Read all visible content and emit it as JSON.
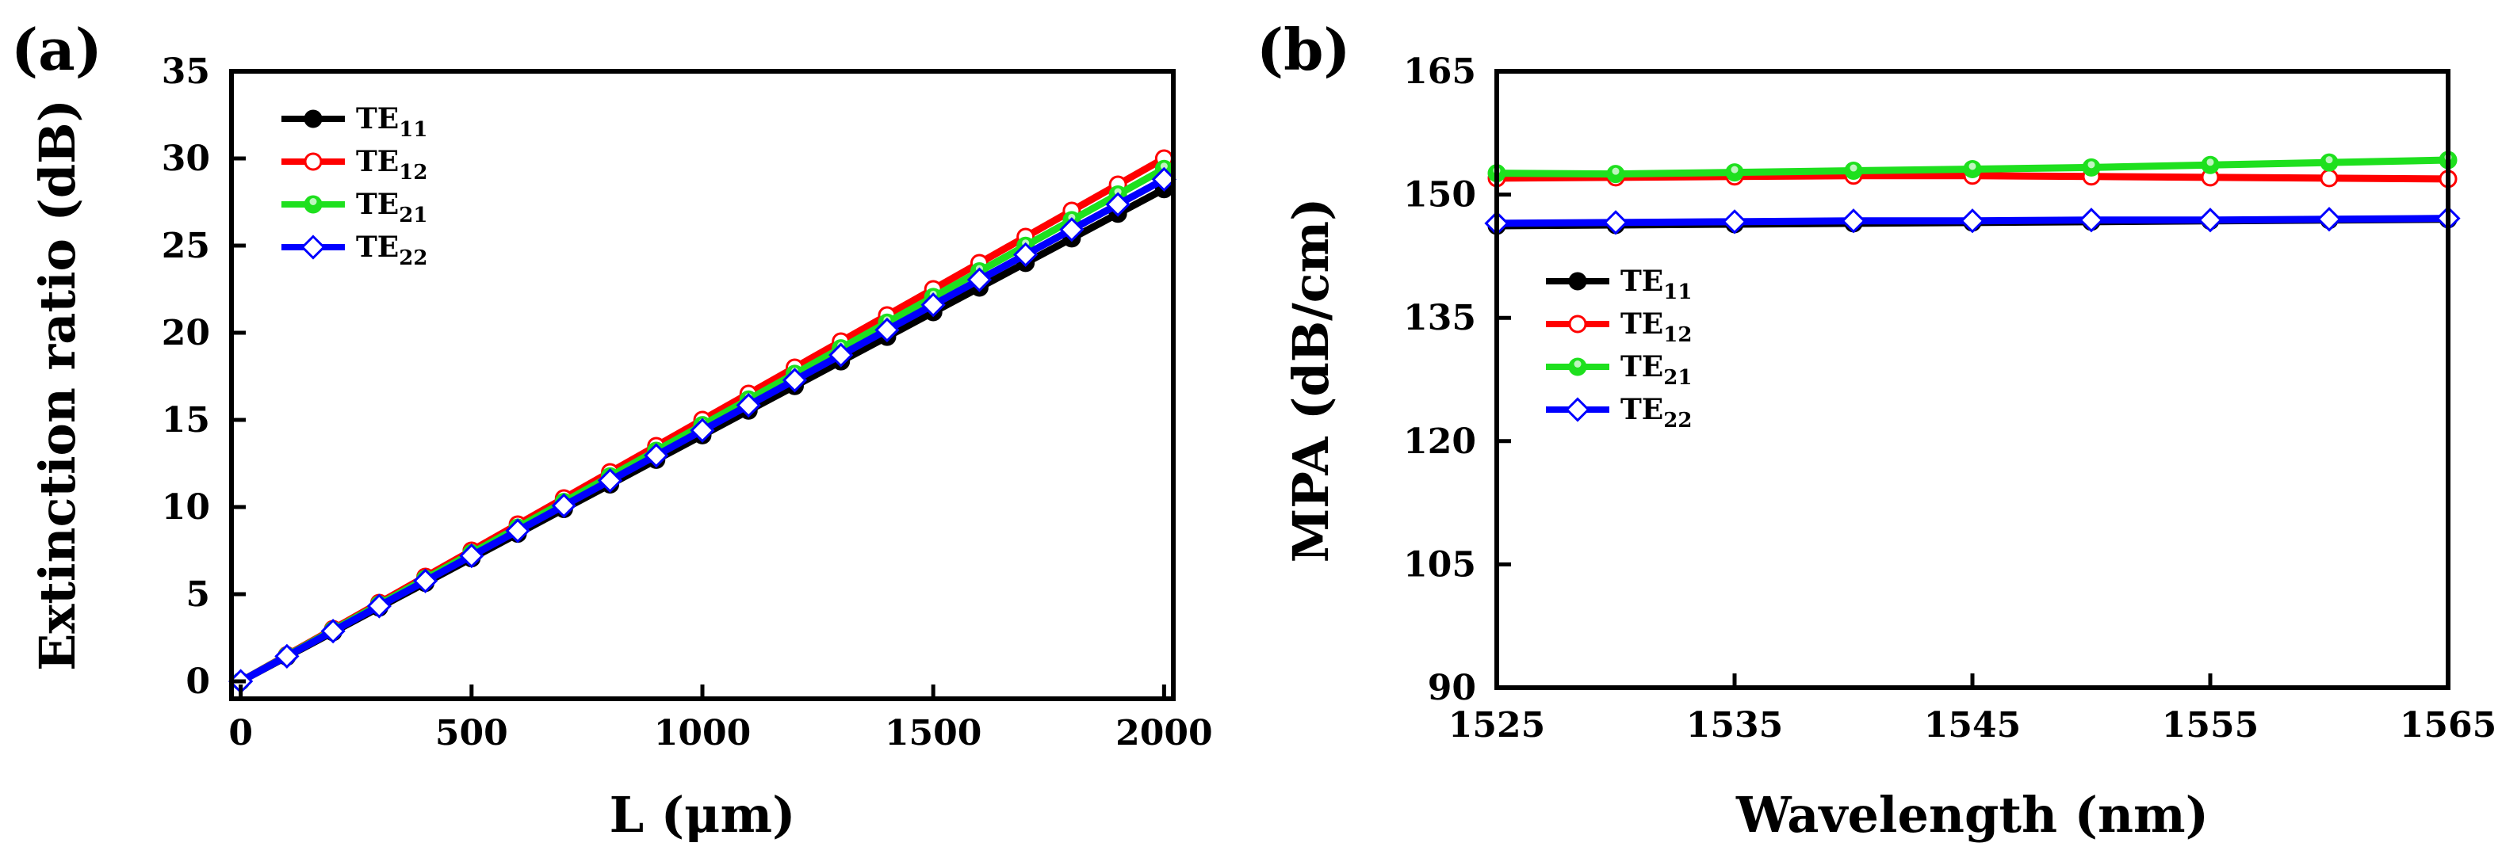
{
  "chart_data": [
    {
      "type": "line",
      "panel_label": "(a)",
      "xlabel": "L (μm)",
      "ylabel": "Extinction ratio (dB)",
      "xlim": [
        -20,
        2020
      ],
      "ylim": [
        -1,
        35
      ],
      "xticks": [
        0,
        500,
        1000,
        1500,
        2000
      ],
      "xtick_labels": [
        "0",
        "500",
        "1000",
        "1500",
        "2000"
      ],
      "yticks": [
        0,
        5,
        10,
        15,
        20,
        25,
        30,
        35
      ],
      "ytick_labels": [
        "0",
        "5",
        "10",
        "15",
        "20",
        "25",
        "30",
        "35"
      ],
      "legend_position": "top-left",
      "x": [
        0,
        100,
        200,
        300,
        400,
        500,
        600,
        700,
        800,
        900,
        1000,
        1100,
        1200,
        1300,
        1400,
        1500,
        1600,
        1700,
        1800,
        1900,
        2000
      ],
      "series": [
        {
          "name": "TE",
          "sub": "11",
          "color": "#000000",
          "marker": "circle-filled",
          "slope": 0.01412
        },
        {
          "name": "TE",
          "sub": "12",
          "color": "#ff0000",
          "marker": "circle-open",
          "slope": 0.015
        },
        {
          "name": "TE",
          "sub": "21",
          "color": "#1ee01e",
          "marker": "circle-half",
          "slope": 0.0147
        },
        {
          "name": "TE",
          "sub": "22",
          "color": "#0000ff",
          "marker": "diamond-open",
          "slope": 0.0144
        }
      ]
    },
    {
      "type": "line",
      "panel_label": "(b)",
      "xlabel": "Wavelength (nm)",
      "ylabel": "MPA (dB/cm)",
      "xlim": [
        1525,
        1565
      ],
      "ylim": [
        90,
        165
      ],
      "xticks": [
        1525,
        1535,
        1545,
        1555,
        1565
      ],
      "xtick_labels": [
        "1525",
        "1535",
        "1545",
        "1555",
        "1565"
      ],
      "yticks": [
        90,
        105,
        120,
        135,
        150,
        165
      ],
      "ytick_labels": [
        "90",
        "105",
        "120",
        "135",
        "150",
        "165"
      ],
      "legend_position": "center-left",
      "x": [
        1525,
        1530,
        1535,
        1540,
        1545,
        1550,
        1555,
        1560,
        1565
      ],
      "series": [
        {
          "name": "TE",
          "sub": "11",
          "color": "#000000",
          "marker": "circle-filled",
          "values": [
            146.2,
            146.3,
            146.4,
            146.5,
            146.6,
            146.7,
            146.8,
            146.9,
            147.0
          ]
        },
        {
          "name": "TE",
          "sub": "12",
          "color": "#ff0000",
          "marker": "circle-open",
          "values": [
            152.0,
            152.1,
            152.2,
            152.3,
            152.3,
            152.2,
            152.1,
            152.0,
            151.9
          ]
        },
        {
          "name": "TE",
          "sub": "21",
          "color": "#1ee01e",
          "marker": "circle-half",
          "values": [
            152.6,
            152.5,
            152.7,
            152.9,
            153.1,
            153.3,
            153.6,
            153.9,
            154.2
          ]
        },
        {
          "name": "TE",
          "sub": "22",
          "color": "#0000ff",
          "marker": "diamond-open",
          "values": [
            146.5,
            146.6,
            146.7,
            146.8,
            146.8,
            146.9,
            146.9,
            147.0,
            147.1
          ]
        }
      ]
    }
  ]
}
